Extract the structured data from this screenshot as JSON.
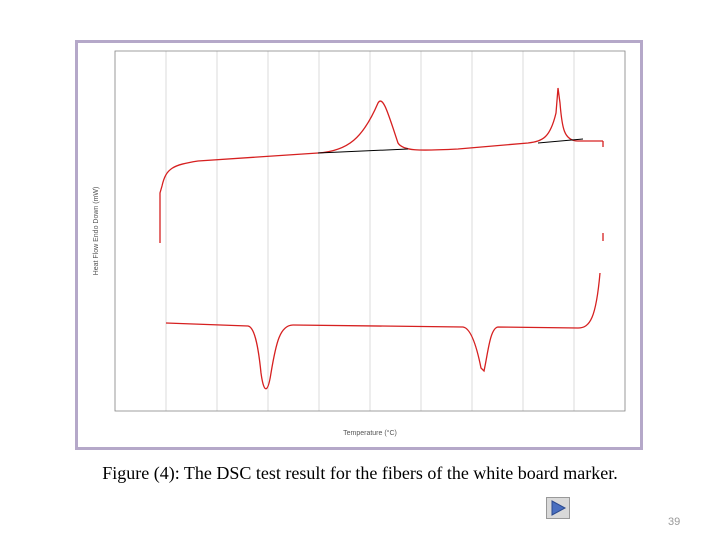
{
  "caption": "Figure (4): The DSC test result for the fibers of the white board marker.",
  "page_number": "39",
  "chart": {
    "x_axis_label": "Temperature (°C)",
    "y_axis_label": "Heat Flow Endo Down (mW)"
  }
}
